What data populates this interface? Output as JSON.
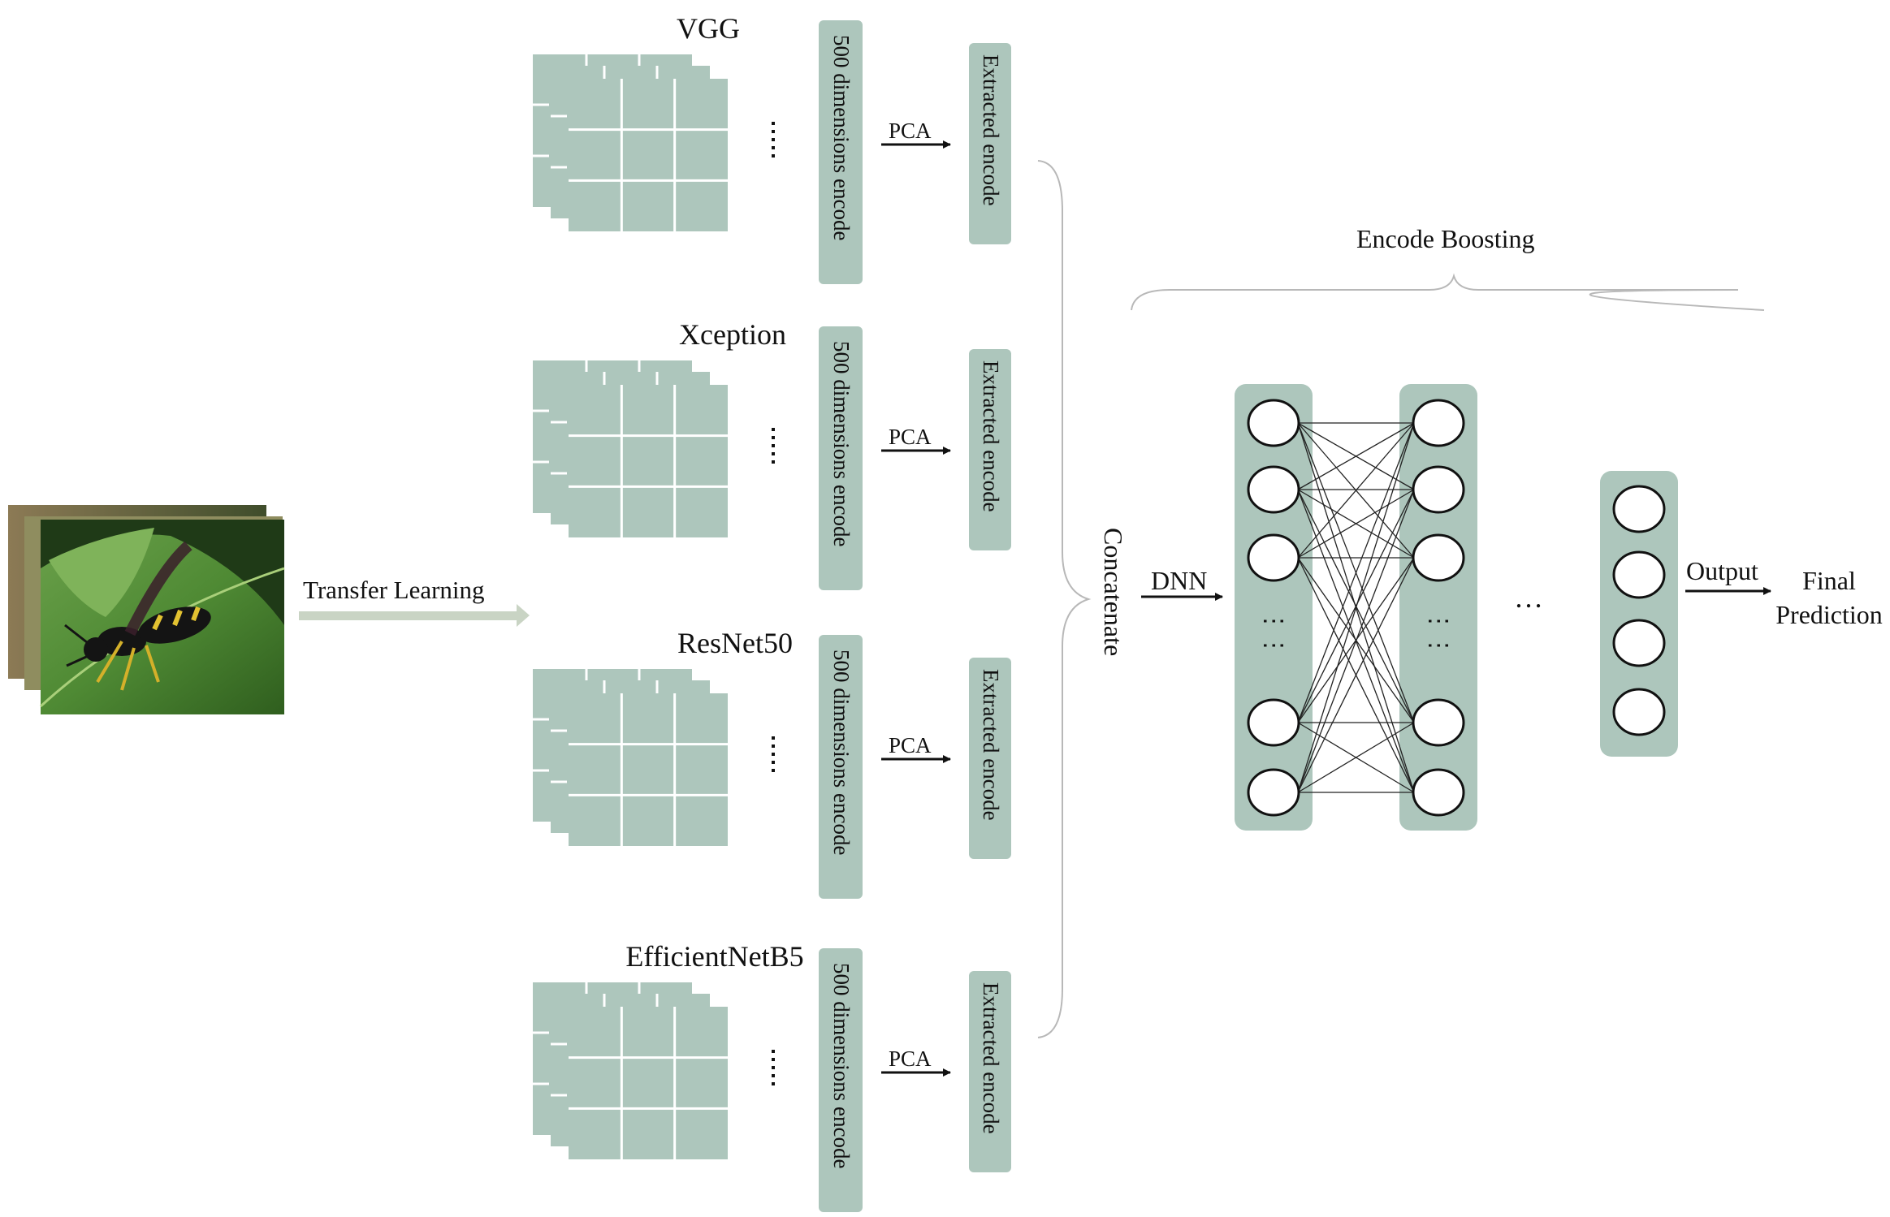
{
  "input": {
    "label": "Transfer Learning",
    "image_subject": "wasp on green leaf (stack of input photos)"
  },
  "branches": [
    {
      "model": "VGG",
      "dims_label": "500 dimensions encode",
      "reduction_label": "PCA",
      "encode_label": "Extracted encode"
    },
    {
      "model": "Xception",
      "dims_label": "500 dimensions encode",
      "reduction_label": "PCA",
      "encode_label": "Extracted encode"
    },
    {
      "model": "ResNet50",
      "dims_label": "500 dimensions encode",
      "reduction_label": "PCA",
      "encode_label": "Extracted encode"
    },
    {
      "model": "EfficientNetB5",
      "dims_label": "500 dimensions encode",
      "reduction_label": "PCA",
      "encode_label": "Extracted encode"
    }
  ],
  "merge": {
    "concat_label": "Concatenate",
    "dnn_label": "DNN"
  },
  "boosting": {
    "title": "Encode Boosting",
    "hidden_ellipsis": "…",
    "output_label": "Output",
    "final_label_line1": "Final",
    "final_label_line2": "Prediction"
  },
  "colors": {
    "block_fill": "#adc6bc",
    "grid_line": "#ffffff",
    "arrow": "#111111",
    "transfer_arrow": "#c9d4c4",
    "brace": "#b8b8b8",
    "node_fill": "#ffffff",
    "node_stroke": "#111111"
  }
}
